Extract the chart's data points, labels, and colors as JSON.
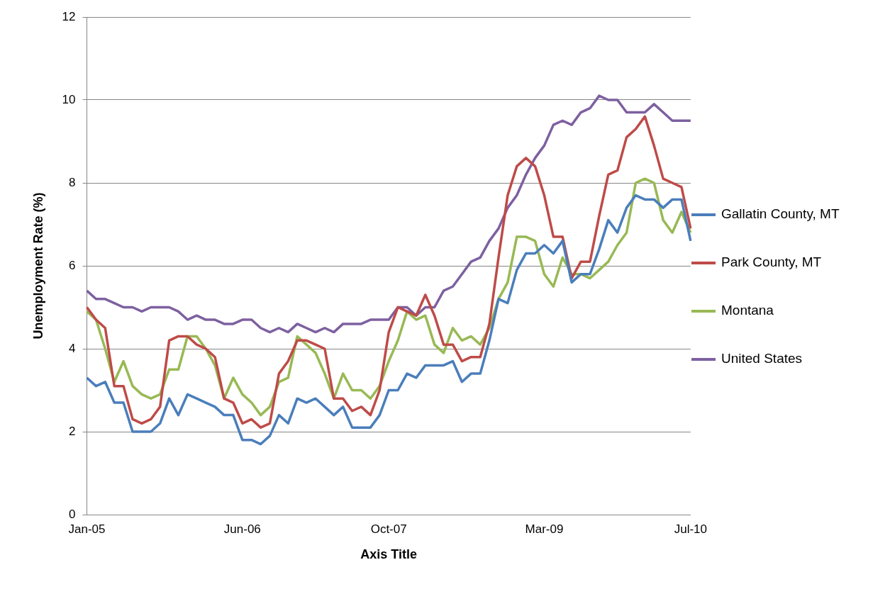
{
  "chart_data": {
    "type": "line",
    "xlabel": "Axis Title",
    "ylabel": "Unemployment Rate (%)",
    "categories": [
      "Jan-05",
      null,
      null,
      null,
      null,
      null,
      null,
      null,
      null,
      null,
      null,
      null,
      null,
      null,
      null,
      null,
      null,
      "Jun-06",
      null,
      null,
      null,
      null,
      null,
      null,
      null,
      null,
      null,
      null,
      null,
      null,
      null,
      null,
      null,
      "Oct-07",
      null,
      null,
      null,
      null,
      null,
      null,
      null,
      null,
      null,
      null,
      null,
      null,
      null,
      null,
      null,
      null,
      "Mar-09",
      null,
      null,
      null,
      null,
      null,
      null,
      null,
      null,
      null,
      null,
      null,
      null,
      null,
      null,
      null,
      "Jul-10"
    ],
    "series": [
      {
        "name": "Gallatin County, MT",
        "color": "#4a7ebb",
        "values": [
          3.3,
          3.1,
          3.2,
          2.7,
          2.7,
          2.0,
          2.0,
          2.0,
          2.2,
          2.8,
          2.4,
          2.9,
          2.8,
          2.7,
          2.6,
          2.4,
          2.4,
          1.8,
          1.8,
          1.7,
          1.9,
          2.4,
          2.2,
          2.8,
          2.7,
          2.8,
          2.6,
          2.4,
          2.6,
          2.1,
          2.1,
          2.1,
          2.4,
          3.0,
          3.0,
          3.4,
          3.3,
          3.6,
          3.6,
          3.6,
          3.7,
          3.2,
          3.4,
          3.4,
          4.2,
          5.2,
          5.1,
          5.9,
          6.3,
          6.3,
          6.5,
          6.3,
          6.6,
          5.6,
          5.8,
          5.8,
          6.4,
          7.1,
          6.8,
          7.4,
          7.7,
          7.6,
          7.6,
          7.4,
          7.6,
          7.6,
          6.6
        ]
      },
      {
        "name": "Park County, MT",
        "color": "#be4b48",
        "values": [
          5.0,
          4.7,
          4.5,
          3.1,
          3.1,
          2.3,
          2.2,
          2.3,
          2.6,
          4.2,
          4.3,
          4.3,
          4.1,
          4.0,
          3.8,
          2.8,
          2.7,
          2.2,
          2.3,
          2.1,
          2.2,
          3.4,
          3.7,
          4.2,
          4.2,
          4.1,
          4.0,
          2.8,
          2.8,
          2.5,
          2.6,
          2.4,
          3.0,
          4.4,
          5.0,
          4.9,
          4.8,
          5.3,
          4.8,
          4.1,
          4.1,
          3.7,
          3.8,
          3.8,
          4.6,
          6.2,
          7.7,
          8.4,
          8.6,
          8.4,
          7.7,
          6.7,
          6.7,
          5.7,
          6.1,
          6.1,
          7.2,
          8.2,
          8.3,
          9.1,
          9.3,
          9.6,
          8.9,
          8.1,
          8.0,
          7.9,
          6.9
        ]
      },
      {
        "name": "Montana",
        "color": "#98b954",
        "values": [
          4.9,
          4.7,
          4.0,
          3.2,
          3.7,
          3.1,
          2.9,
          2.8,
          2.9,
          3.5,
          3.5,
          4.3,
          4.3,
          4.0,
          3.6,
          2.8,
          3.3,
          2.9,
          2.7,
          2.4,
          2.6,
          3.2,
          3.3,
          4.3,
          4.1,
          3.9,
          3.4,
          2.8,
          3.4,
          3.0,
          3.0,
          2.8,
          3.1,
          3.7,
          4.2,
          4.9,
          4.7,
          4.8,
          4.1,
          3.9,
          4.5,
          4.2,
          4.3,
          4.1,
          4.5,
          5.2,
          5.6,
          6.7,
          6.7,
          6.6,
          5.8,
          5.5,
          6.2,
          5.8,
          5.8,
          5.7,
          5.9,
          6.1,
          6.5,
          6.8,
          8.0,
          8.1,
          8.0,
          7.1,
          6.8,
          7.3,
          6.8
        ]
      },
      {
        "name": "United States",
        "color": "#7d60a0",
        "values": [
          5.4,
          5.2,
          5.2,
          5.1,
          5.0,
          5.0,
          4.9,
          5.0,
          5.0,
          5.0,
          4.9,
          4.7,
          4.8,
          4.7,
          4.7,
          4.6,
          4.6,
          4.7,
          4.7,
          4.5,
          4.4,
          4.5,
          4.4,
          4.6,
          4.5,
          4.4,
          4.5,
          4.4,
          4.6,
          4.6,
          4.6,
          4.7,
          4.7,
          4.7,
          5.0,
          5.0,
          4.8,
          5.0,
          5.0,
          5.4,
          5.5,
          5.8,
          6.1,
          6.2,
          6.6,
          6.9,
          7.4,
          7.7,
          8.2,
          8.6,
          8.9,
          9.4,
          9.5,
          9.4,
          9.7,
          9.8,
          10.1,
          10.0,
          10.0,
          9.7,
          9.7,
          9.7,
          9.9,
          9.7,
          9.5,
          9.5,
          9.5
        ]
      }
    ],
    "ylim": [
      0,
      12
    ],
    "yticks": [
      0,
      2,
      4,
      6,
      8,
      10,
      12
    ],
    "grid": "y",
    "legend": "right",
    "marker": "none"
  }
}
